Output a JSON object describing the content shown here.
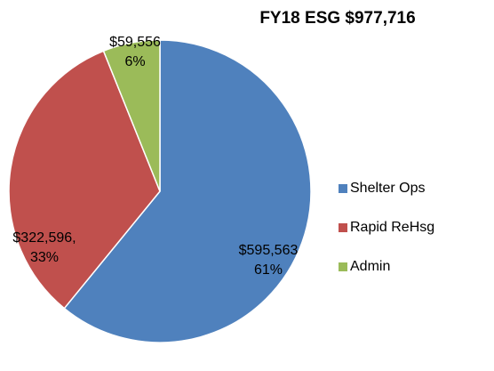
{
  "chart_data": {
    "type": "pie",
    "title": "FY18 ESG $977,716",
    "categories": [
      "Shelter Ops",
      "Rapid ReHsg",
      "Admin"
    ],
    "values": [
      595563,
      322596,
      59556
    ],
    "value_labels": [
      [
        "$595,563",
        "61%"
      ],
      [
        "$322,596,",
        "33%"
      ],
      [
        "$59,556",
        "6%"
      ]
    ],
    "colors": [
      "#4f81bd",
      "#c0504d",
      "#9bbb59"
    ],
    "legend": "right"
  }
}
